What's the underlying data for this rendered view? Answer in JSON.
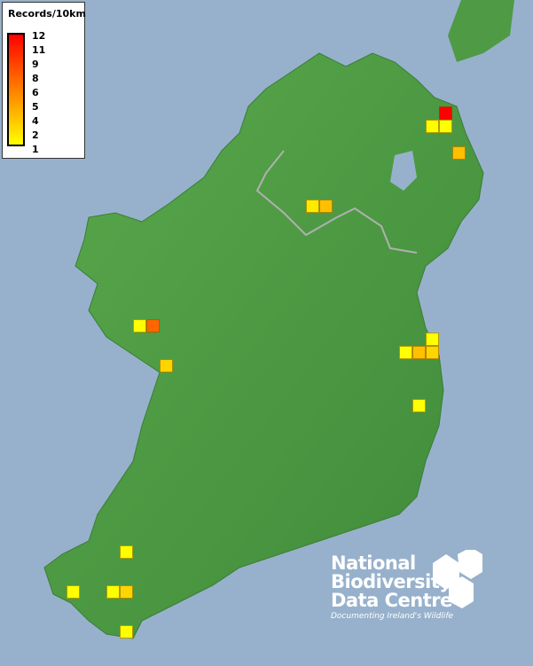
{
  "legend": {
    "title": "Records/10km",
    "ticks": [
      "12",
      "11",
      "9",
      "8",
      "6",
      "5",
      "4",
      "2",
      "1"
    ],
    "colors": {
      "high": "#ff0000",
      "mid": "#ff8c00",
      "low": "#ffff00"
    }
  },
  "records": [
    {
      "value": 12
    },
    {
      "value": 1
    },
    {
      "value": 1
    },
    {
      "value": 4
    },
    {
      "value": 2
    },
    {
      "value": 4
    },
    {
      "value": 1
    },
    {
      "value": 8
    },
    {
      "value": 3
    },
    {
      "value": 1
    },
    {
      "value": 1
    },
    {
      "value": 4
    },
    {
      "value": 3
    },
    {
      "value": 1
    },
    {
      "value": 1
    },
    {
      "value": 1
    },
    {
      "value": 1
    },
    {
      "value": 3
    },
    {
      "value": 1
    }
  ],
  "logo": {
    "line1": "National",
    "line2": "Biodiversity",
    "line3": "Data Centre",
    "tagline": "Documenting Ireland's Wildlife"
  },
  "colors": {
    "sea": "#97b1cc",
    "land": "#4f9a45"
  }
}
